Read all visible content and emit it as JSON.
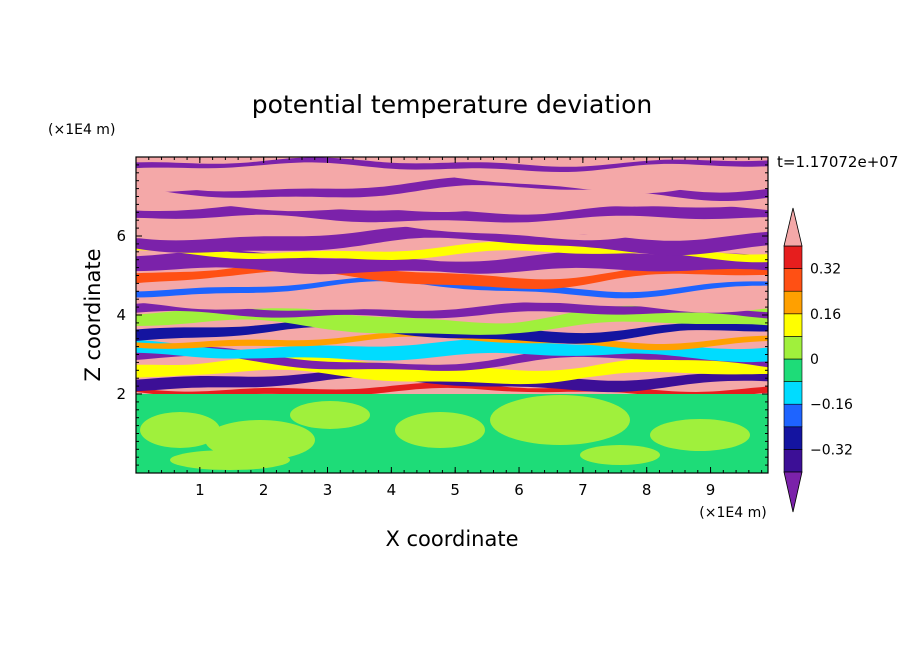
{
  "chart_data": {
    "type": "heatmap",
    "title": "potential temperature deviation",
    "time_label": "t=1.17072e+07",
    "xlabel": "X coordinate",
    "ylabel": "Z coordinate",
    "x_unit": "(×1E4 m)",
    "y_unit": "(×1E4 m)",
    "xlim": [
      0,
      9.9
    ],
    "ylim": [
      0,
      8
    ],
    "x_ticks": [
      "1",
      "2",
      "3",
      "4",
      "5",
      "6",
      "7",
      "8",
      "9"
    ],
    "y_ticks": [
      "2",
      "4",
      "6"
    ],
    "legend": {
      "placement": "right",
      "levels": [
        -0.4,
        -0.32,
        -0.24,
        -0.16,
        -0.08,
        0,
        0.08,
        0.16,
        0.24,
        0.32,
        0.4
      ],
      "labels": [
        "0.32",
        "0.16",
        "0",
        "−0.16",
        "−0.32"
      ],
      "label_values": [
        0.32,
        0.16,
        0,
        -0.16,
        -0.32
      ],
      "under_color": "#7b22aa",
      "over_color": "#f4a8a8",
      "colors": [
        "#3c0f96",
        "#1414a0",
        "#1e64ff",
        "#00dcff",
        "#1edc78",
        "#a0f03c",
        "#ffff00",
        "#ffa000",
        "#ff5014",
        "#e61e1e"
      ]
    },
    "lower_layer": {
      "z_top": 2.0,
      "description_colors": [
        "#1edc78",
        "#a0f03c"
      ]
    },
    "upper_layer_bands": [
      {
        "z": 2.1,
        "color": "#e61e1e"
      },
      {
        "z": 2.35,
        "color": "#3c0f96"
      },
      {
        "z": 2.6,
        "color": "#ffff00"
      },
      {
        "z": 2.85,
        "color": "#7b22aa"
      },
      {
        "z": 3.1,
        "color": "#00dcff"
      },
      {
        "z": 3.35,
        "color": "#ffa000"
      },
      {
        "z": 3.6,
        "color": "#1414a0"
      },
      {
        "z": 3.85,
        "color": "#a0f03c"
      },
      {
        "z": 4.1,
        "color": "#7b22aa"
      },
      {
        "z": 4.4,
        "color": "#f4a8a8"
      },
      {
        "z": 4.7,
        "color": "#1e64ff"
      },
      {
        "z": 5.0,
        "color": "#ff5014"
      },
      {
        "z": 5.3,
        "color": "#7b22aa"
      },
      {
        "z": 5.6,
        "color": "#ffff00"
      },
      {
        "z": 5.9,
        "color": "#7b22aa"
      },
      {
        "z": 6.2,
        "color": "#f4a8a8"
      },
      {
        "z": 6.55,
        "color": "#7b22aa"
      },
      {
        "z": 6.9,
        "color": "#f4a8a8"
      },
      {
        "z": 7.2,
        "color": "#7b22aa"
      },
      {
        "z": 7.5,
        "color": "#f4a8a8"
      },
      {
        "z": 7.8,
        "color": "#7b22aa"
      }
    ]
  }
}
